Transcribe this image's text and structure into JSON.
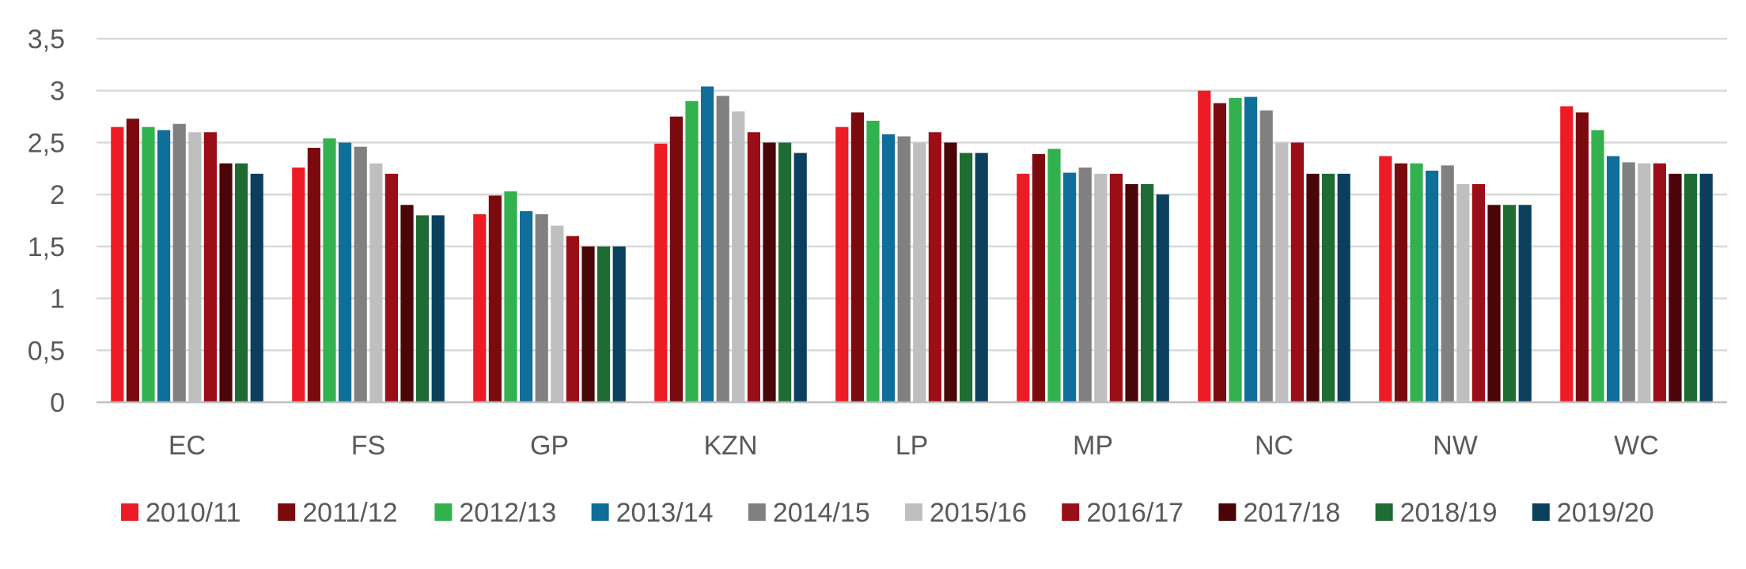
{
  "chart_data": {
    "type": "bar",
    "title": "",
    "xlabel": "",
    "ylabel": "",
    "ylim": [
      0,
      3.5
    ],
    "yticks": [
      "0",
      "0,5",
      "1",
      "1,5",
      "2",
      "2,5",
      "3",
      "3,5"
    ],
    "ytick_values": [
      0,
      0.5,
      1,
      1.5,
      2,
      2.5,
      3,
      3.5
    ],
    "grid": true,
    "legend_position": "bottom",
    "categories": [
      "EC",
      "FS",
      "GP",
      "KZN",
      "LP",
      "MP",
      "NC",
      "NW",
      "WC"
    ],
    "series": [
      {
        "name": "2010/11",
        "color": "#ED1C24",
        "values": [
          2.65,
          2.26,
          1.81,
          2.49,
          2.65,
          2.2,
          3.0,
          2.37,
          2.85
        ]
      },
      {
        "name": "2011/12",
        "color": "#7B0A0E",
        "values": [
          2.73,
          2.45,
          1.99,
          2.75,
          2.79,
          2.39,
          2.88,
          2.3,
          2.79
        ]
      },
      {
        "name": "2012/13",
        "color": "#33B14E",
        "values": [
          2.65,
          2.54,
          2.03,
          2.9,
          2.71,
          2.44,
          2.93,
          2.3,
          2.62
        ]
      },
      {
        "name": "2013/14",
        "color": "#0F6E9A",
        "values": [
          2.62,
          2.5,
          1.84,
          3.04,
          2.58,
          2.21,
          2.94,
          2.23,
          2.37
        ]
      },
      {
        "name": "2014/15",
        "color": "#808080",
        "values": [
          2.68,
          2.46,
          1.81,
          2.95,
          2.56,
          2.26,
          2.81,
          2.28,
          2.31
        ]
      },
      {
        "name": "2015/16",
        "color": "#BFBFBF",
        "values": [
          2.6,
          2.3,
          1.7,
          2.8,
          2.5,
          2.2,
          2.5,
          2.1,
          2.3
        ]
      },
      {
        "name": "2016/17",
        "color": "#9B0E17",
        "values": [
          2.6,
          2.2,
          1.6,
          2.6,
          2.6,
          2.2,
          2.5,
          2.1,
          2.3
        ]
      },
      {
        "name": "2017/18",
        "color": "#4A0508",
        "values": [
          2.3,
          1.9,
          1.5,
          2.5,
          2.5,
          2.1,
          2.2,
          1.9,
          2.2
        ]
      },
      {
        "name": "2018/19",
        "color": "#1E6B33",
        "values": [
          2.3,
          1.8,
          1.5,
          2.5,
          2.4,
          2.1,
          2.2,
          1.9,
          2.2
        ]
      },
      {
        "name": "2019/20",
        "color": "#0B3F5E",
        "values": [
          2.2,
          1.8,
          1.5,
          2.4,
          2.4,
          2.0,
          2.2,
          1.9,
          2.2
        ]
      }
    ],
    "gridline_color": "#D9D9D9",
    "axis_color": "#BFBFBF"
  }
}
